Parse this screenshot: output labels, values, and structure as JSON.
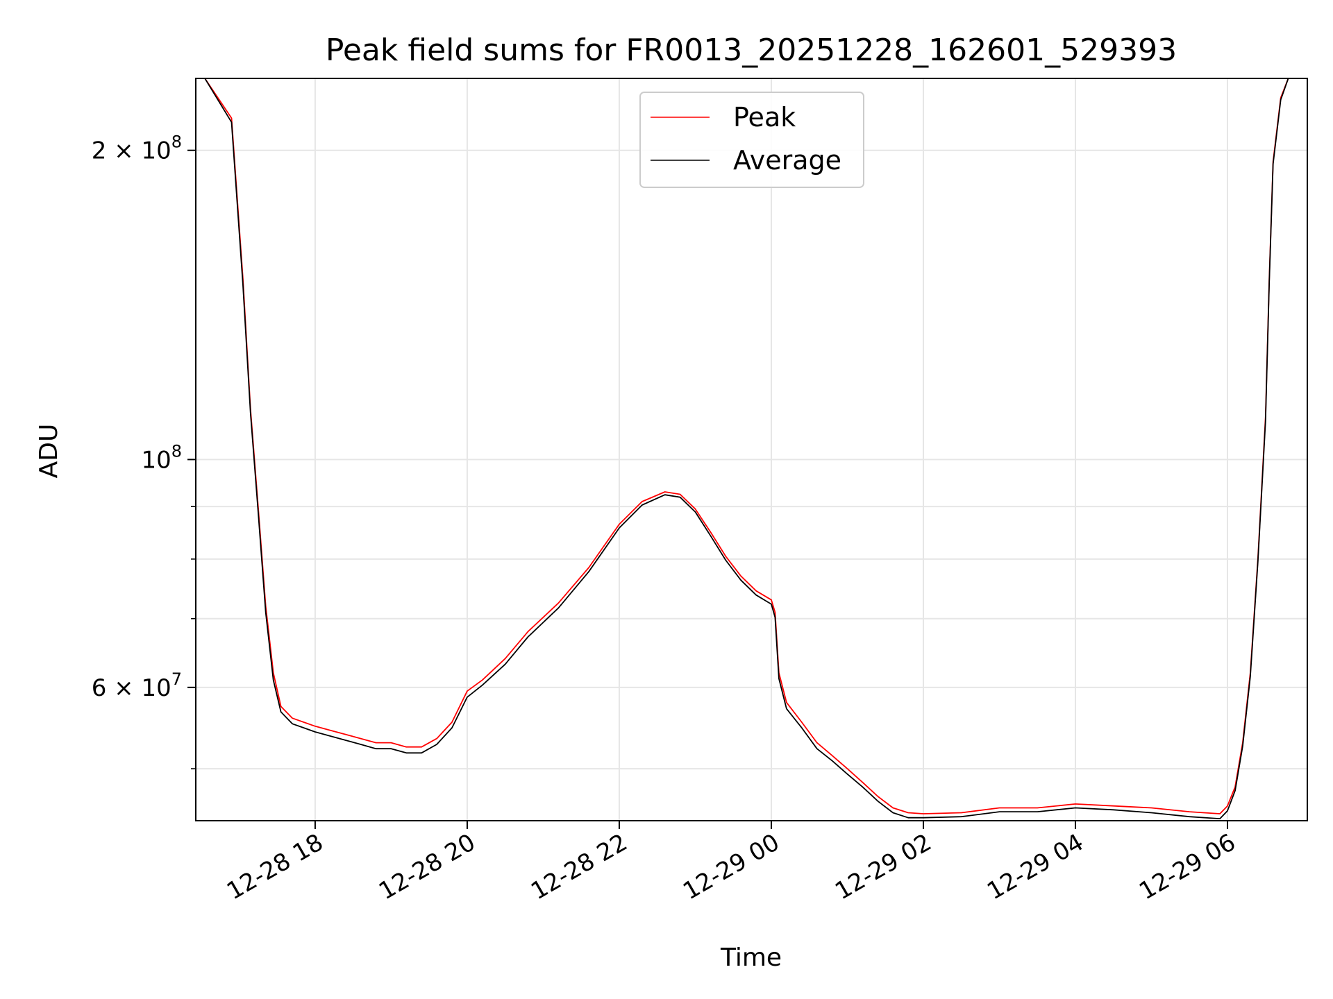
{
  "chart_data": {
    "type": "line",
    "title": "Peak field sums for FR0013_20251228_162601_529393",
    "xlabel": "Time",
    "ylabel": "ADU",
    "xlim": [
      16.43,
      31.05
    ],
    "ylim": [
      44500000,
      235000000
    ],
    "yscale": "log",
    "grid": true,
    "legend_position": "top-center",
    "x_ticks": [
      {
        "value": 18,
        "label": "12-28 18"
      },
      {
        "value": 20,
        "label": "12-28 20"
      },
      {
        "value": 22,
        "label": "12-28 22"
      },
      {
        "value": 24,
        "label": "12-29 00"
      },
      {
        "value": 26,
        "label": "12-29 02"
      },
      {
        "value": 28,
        "label": "12-29 04"
      },
      {
        "value": 30,
        "label": "12-29 06"
      }
    ],
    "y_ticks_major": [
      {
        "value": 60000000,
        "base": "6",
        "exp": "7",
        "mult": true
      },
      {
        "value": 100000000,
        "base": "10",
        "exp": "8",
        "mult": false
      },
      {
        "value": 200000000,
        "base": "2",
        "exp": "8",
        "mult": true
      }
    ],
    "y_ticks_minor": [
      50000000,
      70000000,
      80000000,
      90000000
    ],
    "series": [
      {
        "name": "Peak",
        "color": "#ff0000",
        "x": [
          16.55,
          16.9,
          17.05,
          17.15,
          17.25,
          17.35,
          17.45,
          17.55,
          17.7,
          17.85,
          18.0,
          18.2,
          18.4,
          18.6,
          18.8,
          19.0,
          19.2,
          19.4,
          19.6,
          19.8,
          20.0,
          20.2,
          20.5,
          20.8,
          21.2,
          21.6,
          22.0,
          22.3,
          22.6,
          22.8,
          23.0,
          23.2,
          23.4,
          23.6,
          23.8,
          24.0,
          24.05,
          24.1,
          24.2,
          24.4,
          24.6,
          24.8,
          25.0,
          25.2,
          25.4,
          25.6,
          25.8,
          26.0,
          26.5,
          27.0,
          27.5,
          28.0,
          28.5,
          29.0,
          29.5,
          29.9,
          30.0,
          30.1,
          30.2,
          30.3,
          30.4,
          30.5,
          30.55,
          30.6,
          30.7,
          30.8
        ],
        "y": [
          235000000,
          215000000,
          150000000,
          112000000,
          90000000,
          72000000,
          62000000,
          57500000,
          56000000,
          55500000,
          55000000,
          54500000,
          54000000,
          53500000,
          53000000,
          53000000,
          52500000,
          52500000,
          53500000,
          55500000,
          59500000,
          61000000,
          64000000,
          68000000,
          72500000,
          78500000,
          86500000,
          91000000,
          93000000,
          92500000,
          89500000,
          85000000,
          80500000,
          77000000,
          74500000,
          73000000,
          71000000,
          62000000,
          58000000,
          55500000,
          53000000,
          51500000,
          50000000,
          48500000,
          47000000,
          45800000,
          45300000,
          45200000,
          45300000,
          45800000,
          45800000,
          46200000,
          46000000,
          45800000,
          45400000,
          45200000,
          46000000,
          48000000,
          53000000,
          62000000,
          80000000,
          110000000,
          150000000,
          195000000,
          225000000,
          235000000
        ]
      },
      {
        "name": "Average",
        "color": "#000000",
        "x": [
          16.55,
          16.9,
          17.05,
          17.15,
          17.25,
          17.35,
          17.45,
          17.55,
          17.7,
          17.85,
          18.0,
          18.2,
          18.4,
          18.6,
          18.8,
          19.0,
          19.2,
          19.4,
          19.6,
          19.8,
          20.0,
          20.2,
          20.5,
          20.8,
          21.2,
          21.6,
          22.0,
          22.3,
          22.6,
          22.8,
          23.0,
          23.2,
          23.4,
          23.6,
          23.8,
          24.0,
          24.05,
          24.1,
          24.2,
          24.4,
          24.6,
          24.8,
          25.0,
          25.2,
          25.4,
          25.6,
          25.8,
          26.0,
          26.5,
          27.0,
          27.5,
          28.0,
          28.5,
          29.0,
          29.5,
          29.9,
          30.0,
          30.1,
          30.2,
          30.3,
          30.4,
          30.5,
          30.55,
          30.6,
          30.7,
          30.8
        ],
        "y": [
          235000000,
          213000000,
          148000000,
          111000000,
          89000000,
          71000000,
          61000000,
          56800000,
          55300000,
          54800000,
          54300000,
          53800000,
          53300000,
          52800000,
          52300000,
          52300000,
          51800000,
          51800000,
          52800000,
          54800000,
          58700000,
          60300000,
          63200000,
          67200000,
          71700000,
          77800000,
          85800000,
          90300000,
          92400000,
          91900000,
          88900000,
          84300000,
          79800000,
          76300000,
          73800000,
          72300000,
          70200000,
          61200000,
          57200000,
          54800000,
          52300000,
          50900000,
          49400000,
          48000000,
          46500000,
          45300000,
          44800000,
          44800000,
          44900000,
          45400000,
          45400000,
          45800000,
          45600000,
          45300000,
          44900000,
          44700000,
          45500000,
          47600000,
          52600000,
          61500000,
          79500000,
          109000000,
          149000000,
          194000000,
          224000000,
          235000000
        ]
      }
    ]
  }
}
